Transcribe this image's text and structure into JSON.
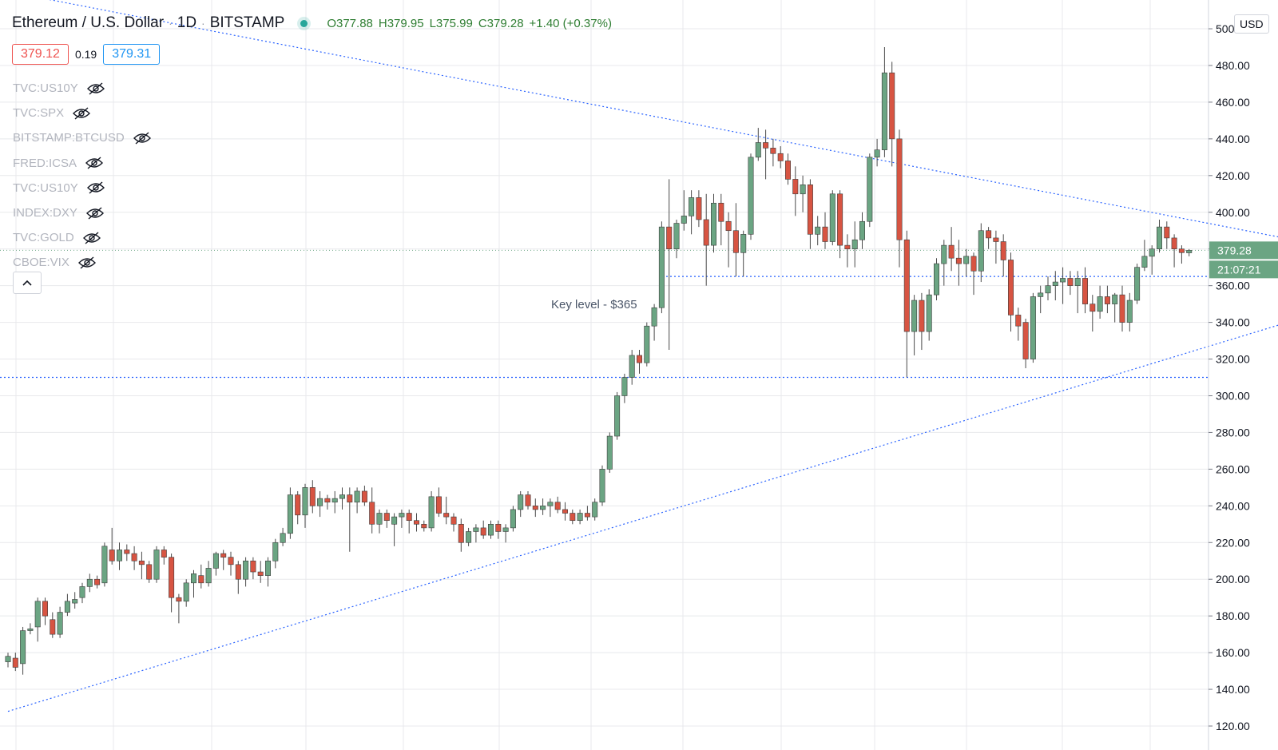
{
  "header": {
    "symbol": "Ethereum / U.S. Dollar",
    "interval": "1D",
    "exchange": "BITSTAMP",
    "open": "O377.88",
    "high": "H379.95",
    "low": "L375.99",
    "close": "C379.28",
    "change": "+1.40 (+0.37%)"
  },
  "quote": {
    "bid": "379.12",
    "spread": "0.19",
    "ask": "379.31"
  },
  "studies": [
    "TVC:US10Y",
    "TVC:SPX",
    "BITSTAMP:BTCUSD",
    "FRED:ICSA",
    "TVC:US10Y",
    "INDEX:DXY",
    "TVC:GOLD",
    "CBOE:VIX"
  ],
  "collapse_label": "^",
  "currency": "USD",
  "colors": {
    "up": "#6ba583",
    "down": "#d75442",
    "grid": "#e8e9ec",
    "line": "#2962ff",
    "axis_text": "#131722"
  },
  "chart_data": {
    "type": "candlestick",
    "title": "Ethereum / U.S. Dollar · 1D · BITSTAMP",
    "ylabel": "",
    "ylim": [
      120,
      520
    ],
    "y_ticks": [
      "120.00",
      "140.00",
      "160.00",
      "180.00",
      "200.00",
      "220.00",
      "240.00",
      "260.00",
      "280.00",
      "300.00",
      "320.00",
      "340.00",
      "360.00",
      "380.00",
      "400.00",
      "420.00",
      "440.00",
      "460.00",
      "480.00",
      "500.00"
    ],
    "grid": true,
    "last_price_label": "379.28",
    "countdown_label": "21:07:21",
    "annotation": "Key level - $365",
    "horizontal_levels": [
      379.28,
      365,
      310
    ],
    "trendlines": [
      {
        "name": "upper-resistance",
        "from": [
          -15,
          532
        ],
        "to": [
          182,
          378
        ]
      },
      {
        "name": "lower-support",
        "from": [
          0,
          128
        ],
        "to": [
          182,
          352
        ]
      }
    ],
    "candles": [
      [
        0,
        155,
        160,
        152,
        158
      ],
      [
        1,
        157,
        160,
        150,
        152
      ],
      [
        2,
        154,
        174,
        148,
        172
      ],
      [
        3,
        172,
        176,
        170,
        173
      ],
      [
        4,
        174,
        190,
        166,
        188
      ],
      [
        5,
        188,
        190,
        175,
        180
      ],
      [
        6,
        178,
        182,
        168,
        170
      ],
      [
        7,
        170,
        185,
        168,
        182
      ],
      [
        8,
        182,
        192,
        180,
        188
      ],
      [
        9,
        187,
        193,
        184,
        189
      ],
      [
        10,
        190,
        198,
        187,
        196
      ],
      [
        11,
        196,
        203,
        193,
        200
      ],
      [
        12,
        200,
        202,
        195,
        197
      ],
      [
        13,
        198,
        220,
        196,
        218
      ],
      [
        14,
        216,
        228,
        208,
        210
      ],
      [
        15,
        210,
        220,
        205,
        216
      ],
      [
        16,
        216,
        219,
        210,
        214
      ],
      [
        17,
        214,
        218,
        205,
        210
      ],
      [
        18,
        210,
        215,
        200,
        208
      ],
      [
        19,
        208,
        210,
        198,
        200
      ],
      [
        20,
        200,
        218,
        198,
        216
      ],
      [
        21,
        216,
        218,
        208,
        212
      ],
      [
        22,
        212,
        214,
        182,
        190
      ],
      [
        23,
        190,
        192,
        176,
        188
      ],
      [
        24,
        188,
        200,
        185,
        198
      ],
      [
        25,
        198,
        205,
        190,
        203
      ],
      [
        26,
        202,
        208,
        195,
        198
      ],
      [
        27,
        198,
        210,
        196,
        206
      ],
      [
        28,
        206,
        215,
        202,
        214
      ],
      [
        29,
        214,
        216,
        205,
        212
      ],
      [
        30,
        212,
        215,
        202,
        208
      ],
      [
        31,
        208,
        210,
        192,
        200
      ],
      [
        32,
        200,
        212,
        196,
        210
      ],
      [
        33,
        210,
        212,
        200,
        204
      ],
      [
        34,
        204,
        210,
        198,
        202
      ],
      [
        35,
        202,
        212,
        196,
        210
      ],
      [
        36,
        210,
        222,
        206,
        220
      ],
      [
        37,
        220,
        228,
        218,
        225
      ],
      [
        38,
        225,
        250,
        222,
        246
      ],
      [
        39,
        246,
        248,
        230,
        235
      ],
      [
        40,
        235,
        252,
        228,
        250
      ],
      [
        41,
        250,
        254,
        236,
        240
      ],
      [
        42,
        240,
        248,
        234,
        244
      ],
      [
        43,
        244,
        246,
        238,
        242
      ],
      [
        44,
        242,
        248,
        236,
        244
      ],
      [
        45,
        244,
        250,
        238,
        246
      ],
      [
        46,
        246,
        250,
        215,
        242
      ],
      [
        47,
        242,
        250,
        236,
        248
      ],
      [
        48,
        248,
        251,
        240,
        242
      ],
      [
        49,
        242,
        250,
        225,
        230
      ],
      [
        50,
        230,
        238,
        225,
        236
      ],
      [
        51,
        236,
        238,
        228,
        232
      ],
      [
        52,
        230,
        236,
        218,
        234
      ],
      [
        53,
        234,
        238,
        228,
        236
      ],
      [
        54,
        236,
        238,
        225,
        232
      ],
      [
        55,
        232,
        236,
        226,
        230
      ],
      [
        56,
        230,
        232,
        226,
        228
      ],
      [
        57,
        228,
        248,
        226,
        245
      ],
      [
        58,
        245,
        250,
        234,
        236
      ],
      [
        59,
        236,
        245,
        230,
        234
      ],
      [
        60,
        234,
        236,
        226,
        230
      ],
      [
        61,
        230,
        233,
        215,
        220
      ],
      [
        62,
        220,
        228,
        218,
        226
      ],
      [
        63,
        226,
        230,
        220,
        228
      ],
      [
        64,
        228,
        232,
        222,
        224
      ],
      [
        65,
        224,
        232,
        222,
        230
      ],
      [
        66,
        230,
        232,
        222,
        226
      ],
      [
        67,
        226,
        230,
        220,
        228
      ],
      [
        68,
        228,
        240,
        226,
        238
      ],
      [
        69,
        238,
        248,
        234,
        246
      ],
      [
        70,
        246,
        248,
        238,
        240
      ],
      [
        71,
        240,
        244,
        234,
        238
      ],
      [
        72,
        238,
        244,
        235,
        240
      ],
      [
        73,
        240,
        244,
        234,
        242
      ],
      [
        74,
        242,
        245,
        236,
        238
      ],
      [
        75,
        238,
        242,
        232,
        236
      ],
      [
        76,
        236,
        238,
        230,
        232
      ],
      [
        77,
        232,
        238,
        230,
        236
      ],
      [
        78,
        236,
        240,
        232,
        234
      ],
      [
        79,
        234,
        244,
        232,
        242
      ],
      [
        80,
        242,
        262,
        240,
        260
      ],
      [
        81,
        260,
        280,
        258,
        278
      ],
      [
        82,
        278,
        302,
        276,
        300
      ],
      [
        83,
        300,
        312,
        296,
        310
      ],
      [
        84,
        310,
        325,
        306,
        322
      ],
      [
        85,
        322,
        325,
        312,
        318
      ],
      [
        86,
        318,
        340,
        316,
        338
      ],
      [
        87,
        338,
        350,
        330,
        348
      ],
      [
        88,
        348,
        395,
        345,
        392
      ],
      [
        89,
        392,
        418,
        325,
        380
      ],
      [
        90,
        380,
        396,
        375,
        394
      ],
      [
        91,
        394,
        412,
        390,
        398
      ],
      [
        92,
        398,
        412,
        388,
        408
      ],
      [
        93,
        408,
        412,
        392,
        396
      ],
      [
        94,
        396,
        410,
        360,
        382
      ],
      [
        95,
        382,
        410,
        378,
        405
      ],
      [
        96,
        405,
        410,
        382,
        395
      ],
      [
        97,
        395,
        400,
        370,
        390
      ],
      [
        98,
        390,
        405,
        365,
        378
      ],
      [
        99,
        378,
        390,
        365,
        388
      ],
      [
        100,
        388,
        432,
        385,
        430
      ],
      [
        101,
        430,
        446,
        428,
        438
      ],
      [
        102,
        438,
        445,
        418,
        435
      ],
      [
        103,
        435,
        440,
        425,
        432
      ],
      [
        104,
        432,
        436,
        424,
        428
      ],
      [
        105,
        428,
        432,
        415,
        418
      ],
      [
        106,
        418,
        425,
        398,
        410
      ],
      [
        107,
        410,
        420,
        400,
        415
      ],
      [
        108,
        415,
        418,
        380,
        388
      ],
      [
        109,
        388,
        398,
        382,
        392
      ],
      [
        110,
        392,
        400,
        380,
        384
      ],
      [
        111,
        384,
        412,
        382,
        410
      ],
      [
        112,
        410,
        412,
        375,
        382
      ],
      [
        113,
        382,
        388,
        370,
        380
      ],
      [
        114,
        380,
        395,
        370,
        385
      ],
      [
        115,
        385,
        400,
        380,
        395
      ],
      [
        116,
        395,
        432,
        392,
        430
      ],
      [
        117,
        430,
        440,
        425,
        434
      ],
      [
        118,
        434,
        490,
        430,
        476
      ],
      [
        119,
        476,
        482,
        425,
        440
      ],
      [
        120,
        440,
        445,
        370,
        385
      ],
      [
        121,
        385,
        390,
        310,
        335
      ],
      [
        122,
        335,
        355,
        322,
        352
      ],
      [
        123,
        352,
        356,
        325,
        335
      ],
      [
        124,
        335,
        358,
        330,
        355
      ],
      [
        125,
        355,
        375,
        352,
        372
      ],
      [
        126,
        372,
        385,
        360,
        382
      ],
      [
        127,
        382,
        392,
        368,
        375
      ],
      [
        128,
        375,
        385,
        360,
        372
      ],
      [
        129,
        372,
        380,
        365,
        376
      ],
      [
        130,
        376,
        378,
        355,
        368
      ],
      [
        131,
        368,
        394,
        362,
        390
      ],
      [
        132,
        390,
        392,
        380,
        386
      ],
      [
        133,
        386,
        390,
        372,
        384
      ],
      [
        134,
        384,
        388,
        365,
        374
      ],
      [
        135,
        374,
        378,
        335,
        344
      ],
      [
        136,
        344,
        348,
        330,
        338
      ],
      [
        137,
        340,
        342,
        315,
        320
      ],
      [
        138,
        320,
        356,
        318,
        354
      ],
      [
        139,
        354,
        360,
        345,
        356
      ],
      [
        140,
        356,
        365,
        352,
        360
      ],
      [
        141,
        360,
        368,
        352,
        362
      ],
      [
        142,
        362,
        370,
        350,
        364
      ],
      [
        143,
        364,
        368,
        355,
        360
      ],
      [
        144,
        360,
        368,
        345,
        364
      ],
      [
        145,
        364,
        370,
        345,
        350
      ],
      [
        146,
        350,
        355,
        335,
        346
      ],
      [
        147,
        346,
        360,
        342,
        354
      ],
      [
        148,
        354,
        360,
        345,
        350
      ],
      [
        149,
        350,
        356,
        340,
        355
      ],
      [
        150,
        355,
        360,
        335,
        340
      ],
      [
        151,
        340,
        356,
        335,
        352
      ],
      [
        152,
        352,
        372,
        350,
        370
      ],
      [
        153,
        370,
        385,
        368,
        376
      ],
      [
        154,
        376,
        382,
        366,
        380
      ],
      [
        155,
        380,
        396,
        378,
        392
      ],
      [
        156,
        392,
        395,
        380,
        386
      ],
      [
        157,
        386,
        388,
        370,
        380
      ],
      [
        158,
        380,
        382,
        372,
        378
      ],
      [
        159,
        377.88,
        379.95,
        375.99,
        379.28
      ]
    ]
  }
}
